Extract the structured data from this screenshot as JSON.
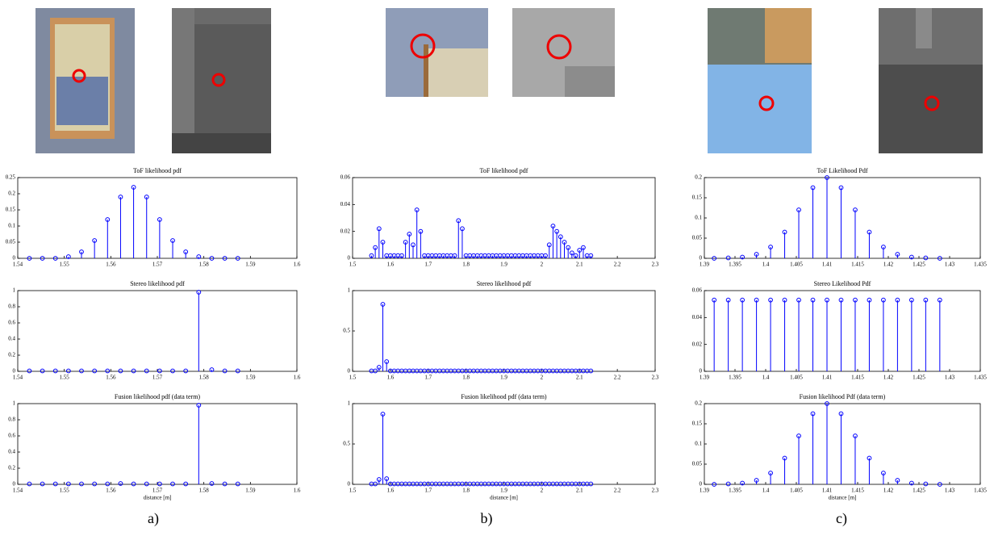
{
  "chart_data": [
    {
      "type": "stem",
      "title": "ToF likelihood pdf",
      "color": "#0000ff",
      "xlim": [
        1.54,
        1.6
      ],
      "xticks": [
        1.54,
        1.55,
        1.56,
        1.57,
        1.58,
        1.59,
        1.6
      ],
      "ylim": [
        0,
        0.25
      ],
      "yticks": [
        0,
        0.05,
        0.1,
        0.15,
        0.2,
        0.25
      ],
      "x": [
        1.5425,
        1.5453,
        1.5481,
        1.5509,
        1.5537,
        1.5565,
        1.5593,
        1.5621,
        1.5649,
        1.5677,
        1.5705,
        1.5733,
        1.5761,
        1.5789,
        1.5817,
        1.5845,
        1.5873
      ],
      "values": [
        0,
        0,
        0,
        0.005,
        0.02,
        0.055,
        0.12,
        0.19,
        0.22,
        0.19,
        0.12,
        0.055,
        0.02,
        0.005,
        0,
        0,
        0
      ]
    },
    {
      "type": "stem",
      "title": "ToF likelihood pdf",
      "color": "#0000ff",
      "xlim": [
        1.5,
        2.3
      ],
      "xticks": [
        1.5,
        1.6,
        1.7,
        1.8,
        1.9,
        2,
        2.1,
        2.2,
        2.3
      ],
      "ylim": [
        0,
        0.06
      ],
      "yticks": [
        0,
        0.02,
        0.04,
        0.06
      ],
      "x": [
        1.55,
        1.56,
        1.57,
        1.58,
        1.59,
        1.6,
        1.61,
        1.62,
        1.63,
        1.64,
        1.65,
        1.66,
        1.67,
        1.68,
        1.69,
        1.7,
        1.71,
        1.72,
        1.73,
        1.74,
        1.75,
        1.76,
        1.77,
        1.78,
        1.79,
        1.8,
        1.81,
        1.82,
        1.83,
        1.84,
        1.85,
        1.86,
        1.87,
        1.88,
        1.89,
        1.9,
        1.91,
        1.92,
        1.93,
        1.94,
        1.95,
        1.96,
        1.97,
        1.98,
        1.99,
        2,
        2.01,
        2.02,
        2.03,
        2.04,
        2.05,
        2.06,
        2.07,
        2.08,
        2.09,
        2.1,
        2.11,
        2.12,
        2.13
      ],
      "values": [
        0.002,
        0.008,
        0.022,
        0.012,
        0.002,
        0.002,
        0.002,
        0.002,
        0.002,
        0.012,
        0.018,
        0.01,
        0.036,
        0.02,
        0.002,
        0.002,
        0.002,
        0.002,
        0.002,
        0.002,
        0.002,
        0.002,
        0.002,
        0.028,
        0.022,
        0.002,
        0.002,
        0.002,
        0.002,
        0.002,
        0.002,
        0.002,
        0.002,
        0.002,
        0.002,
        0.002,
        0.002,
        0.002,
        0.002,
        0.002,
        0.002,
        0.002,
        0.002,
        0.002,
        0.002,
        0.002,
        0.002,
        0.01,
        0.024,
        0.02,
        0.016,
        0.012,
        0.008,
        0.004,
        0.002,
        0.006,
        0.008,
        0.002,
        0.002
      ]
    },
    {
      "type": "stem",
      "title": "ToF Likelihood Pdf",
      "color": "#0000ff",
      "xlim": [
        1.39,
        1.435
      ],
      "xticks": [
        1.39,
        1.395,
        1.4,
        1.405,
        1.41,
        1.415,
        1.42,
        1.425,
        1.43,
        1.435
      ],
      "ylim": [
        0,
        0.2
      ],
      "yticks": [
        0,
        0.05,
        0.1,
        0.15,
        0.2
      ],
      "x": [
        1.3916,
        1.3939,
        1.3962,
        1.3985,
        1.4008,
        1.4031,
        1.4054,
        1.4077,
        1.41,
        1.4123,
        1.4146,
        1.4169,
        1.4192,
        1.4215,
        1.4238,
        1.4261,
        1.4284
      ],
      "values": [
        0,
        0.001,
        0.003,
        0.01,
        0.028,
        0.065,
        0.12,
        0.175,
        0.2,
        0.175,
        0.12,
        0.065,
        0.028,
        0.01,
        0.003,
        0.001,
        0
      ]
    },
    {
      "type": "stem",
      "title": "Stereo likelihood pdf",
      "color": "#0000ff",
      "xlim": [
        1.54,
        1.6
      ],
      "xticks": [
        1.54,
        1.55,
        1.56,
        1.57,
        1.58,
        1.59,
        1.6
      ],
      "ylim": [
        0,
        1
      ],
      "yticks": [
        0,
        0.2,
        0.4,
        0.6,
        0.8,
        1
      ],
      "x": [
        1.5425,
        1.5453,
        1.5481,
        1.5509,
        1.5537,
        1.5565,
        1.5593,
        1.5621,
        1.5649,
        1.5677,
        1.5705,
        1.5733,
        1.5761,
        1.5789,
        1.5817,
        1.5845,
        1.5873
      ],
      "values": [
        0.005,
        0.005,
        0.005,
        0.005,
        0.005,
        0.005,
        0.005,
        0.005,
        0.005,
        0.005,
        0.005,
        0.005,
        0.005,
        0.98,
        0.02,
        0.005,
        0.005
      ]
    },
    {
      "type": "stem",
      "title": "Stereo likelihood pdf",
      "color": "#0000ff",
      "xlim": [
        1.5,
        2.3
      ],
      "xticks": [
        1.5,
        1.6,
        1.7,
        1.8,
        1.9,
        2,
        2.1,
        2.2,
        2.3
      ],
      "ylim": [
        0,
        1
      ],
      "yticks": [
        0,
        0.5,
        1
      ],
      "x": [
        1.55,
        1.56,
        1.57,
        1.58,
        1.59,
        1.6,
        1.61,
        1.62,
        1.63,
        1.64,
        1.65,
        1.66,
        1.67,
        1.68,
        1.69,
        1.7,
        1.71,
        1.72,
        1.73,
        1.74,
        1.75,
        1.76,
        1.77,
        1.78,
        1.79,
        1.8,
        1.81,
        1.82,
        1.83,
        1.84,
        1.85,
        1.86,
        1.87,
        1.88,
        1.89,
        1.9,
        1.91,
        1.92,
        1.93,
        1.94,
        1.95,
        1.96,
        1.97,
        1.98,
        1.99,
        2,
        2.01,
        2.02,
        2.03,
        2.04,
        2.05,
        2.06,
        2.07,
        2.08,
        2.09,
        2.1,
        2.11,
        2.12,
        2.13
      ],
      "values": [
        0.005,
        0.005,
        0.05,
        0.83,
        0.12,
        0.005,
        0.005,
        0.005,
        0.005,
        0.005,
        0.005,
        0.005,
        0.005,
        0.005,
        0.005,
        0.005,
        0.005,
        0.005,
        0.005,
        0.005,
        0.005,
        0.005,
        0.005,
        0.005,
        0.005,
        0.005,
        0.005,
        0.005,
        0.005,
        0.005,
        0.005,
        0.005,
        0.005,
        0.005,
        0.005,
        0.005,
        0.005,
        0.005,
        0.005,
        0.005,
        0.005,
        0.005,
        0.005,
        0.005,
        0.005,
        0.005,
        0.005,
        0.005,
        0.005,
        0.005,
        0.005,
        0.005,
        0.005,
        0.005,
        0.005,
        0.005,
        0.005,
        0.005,
        0.005
      ]
    },
    {
      "type": "stem",
      "title": "Stereo Likelihood Pdf",
      "color": "#0000ff",
      "xlim": [
        1.39,
        1.435
      ],
      "xticks": [
        1.39,
        1.395,
        1.4,
        1.405,
        1.41,
        1.415,
        1.42,
        1.425,
        1.43,
        1.435
      ],
      "ylim": [
        0,
        0.06
      ],
      "yticks": [
        0,
        0.02,
        0.04,
        0.06
      ],
      "x": [
        1.3916,
        1.3939,
        1.3962,
        1.3985,
        1.4008,
        1.4031,
        1.4054,
        1.4077,
        1.41,
        1.4123,
        1.4146,
        1.4169,
        1.4192,
        1.4215,
        1.4238,
        1.4261,
        1.4284
      ],
      "values": [
        0.053,
        0.053,
        0.053,
        0.053,
        0.053,
        0.053,
        0.053,
        0.053,
        0.053,
        0.053,
        0.053,
        0.053,
        0.053,
        0.053,
        0.053,
        0.053,
        0.053
      ]
    },
    {
      "type": "stem",
      "title": "Fusion likelihood pdf (data term)",
      "xlabel": "distance [m]",
      "color": "#0000ff",
      "xlim": [
        1.54,
        1.6
      ],
      "xticks": [
        1.54,
        1.55,
        1.56,
        1.57,
        1.58,
        1.59,
        1.6
      ],
      "ylim": [
        0,
        1
      ],
      "yticks": [
        0,
        0.2,
        0.4,
        0.6,
        0.8,
        1
      ],
      "x": [
        1.5425,
        1.5453,
        1.5481,
        1.5509,
        1.5537,
        1.5565,
        1.5593,
        1.5621,
        1.5649,
        1.5677,
        1.5705,
        1.5733,
        1.5761,
        1.5789,
        1.5817,
        1.5845,
        1.5873
      ],
      "values": [
        0.005,
        0.005,
        0.005,
        0.005,
        0.005,
        0.005,
        0.005,
        0.01,
        0.005,
        0.005,
        0.005,
        0.005,
        0.005,
        0.98,
        0.01,
        0.005,
        0.005
      ]
    },
    {
      "type": "stem",
      "title": "Fusion likelihood pdf (data term)",
      "xlabel": "distance [m]",
      "color": "#0000ff",
      "xlim": [
        1.5,
        2.3
      ],
      "xticks": [
        1.5,
        1.6,
        1.7,
        1.8,
        1.9,
        2,
        2.1,
        2.2,
        2.3
      ],
      "ylim": [
        0,
        1
      ],
      "yticks": [
        0,
        0.5,
        1
      ],
      "x": [
        1.55,
        1.56,
        1.57,
        1.58,
        1.59,
        1.6,
        1.61,
        1.62,
        1.63,
        1.64,
        1.65,
        1.66,
        1.67,
        1.68,
        1.69,
        1.7,
        1.71,
        1.72,
        1.73,
        1.74,
        1.75,
        1.76,
        1.77,
        1.78,
        1.79,
        1.8,
        1.81,
        1.82,
        1.83,
        1.84,
        1.85,
        1.86,
        1.87,
        1.88,
        1.89,
        1.9,
        1.91,
        1.92,
        1.93,
        1.94,
        1.95,
        1.96,
        1.97,
        1.98,
        1.99,
        2,
        2.01,
        2.02,
        2.03,
        2.04,
        2.05,
        2.06,
        2.07,
        2.08,
        2.09,
        2.1,
        2.11,
        2.12,
        2.13
      ],
      "values": [
        0.005,
        0.005,
        0.06,
        0.87,
        0.07,
        0.005,
        0.005,
        0.005,
        0.005,
        0.005,
        0.005,
        0.005,
        0.005,
        0.005,
        0.005,
        0.005,
        0.005,
        0.005,
        0.005,
        0.005,
        0.005,
        0.005,
        0.005,
        0.005,
        0.005,
        0.005,
        0.005,
        0.005,
        0.005,
        0.005,
        0.005,
        0.005,
        0.005,
        0.005,
        0.005,
        0.005,
        0.005,
        0.005,
        0.005,
        0.005,
        0.005,
        0.005,
        0.005,
        0.005,
        0.005,
        0.005,
        0.005,
        0.005,
        0.005,
        0.005,
        0.005,
        0.005,
        0.005,
        0.005,
        0.005,
        0.005,
        0.005,
        0.005,
        0.005
      ]
    },
    {
      "type": "stem",
      "title": "Fusion likelihood Pdf (data term)",
      "xlabel": "distance [m]",
      "color": "#0000ff",
      "xlim": [
        1.39,
        1.435
      ],
      "xticks": [
        1.39,
        1.395,
        1.4,
        1.405,
        1.41,
        1.415,
        1.42,
        1.425,
        1.43,
        1.435
      ],
      "ylim": [
        0,
        0.2
      ],
      "yticks": [
        0,
        0.05,
        0.1,
        0.15,
        0.2
      ],
      "x": [
        1.3916,
        1.3939,
        1.3962,
        1.3985,
        1.4008,
        1.4031,
        1.4054,
        1.4077,
        1.41,
        1.4123,
        1.4146,
        1.4169,
        1.4192,
        1.4215,
        1.4238,
        1.4261,
        1.4284
      ],
      "values": [
        0,
        0.001,
        0.003,
        0.01,
        0.028,
        0.065,
        0.12,
        0.175,
        0.2,
        0.175,
        0.12,
        0.065,
        0.028,
        0.01,
        0.003,
        0.001,
        0
      ]
    }
  ],
  "panel_labels": [
    "a)",
    "b)",
    "c)"
  ]
}
